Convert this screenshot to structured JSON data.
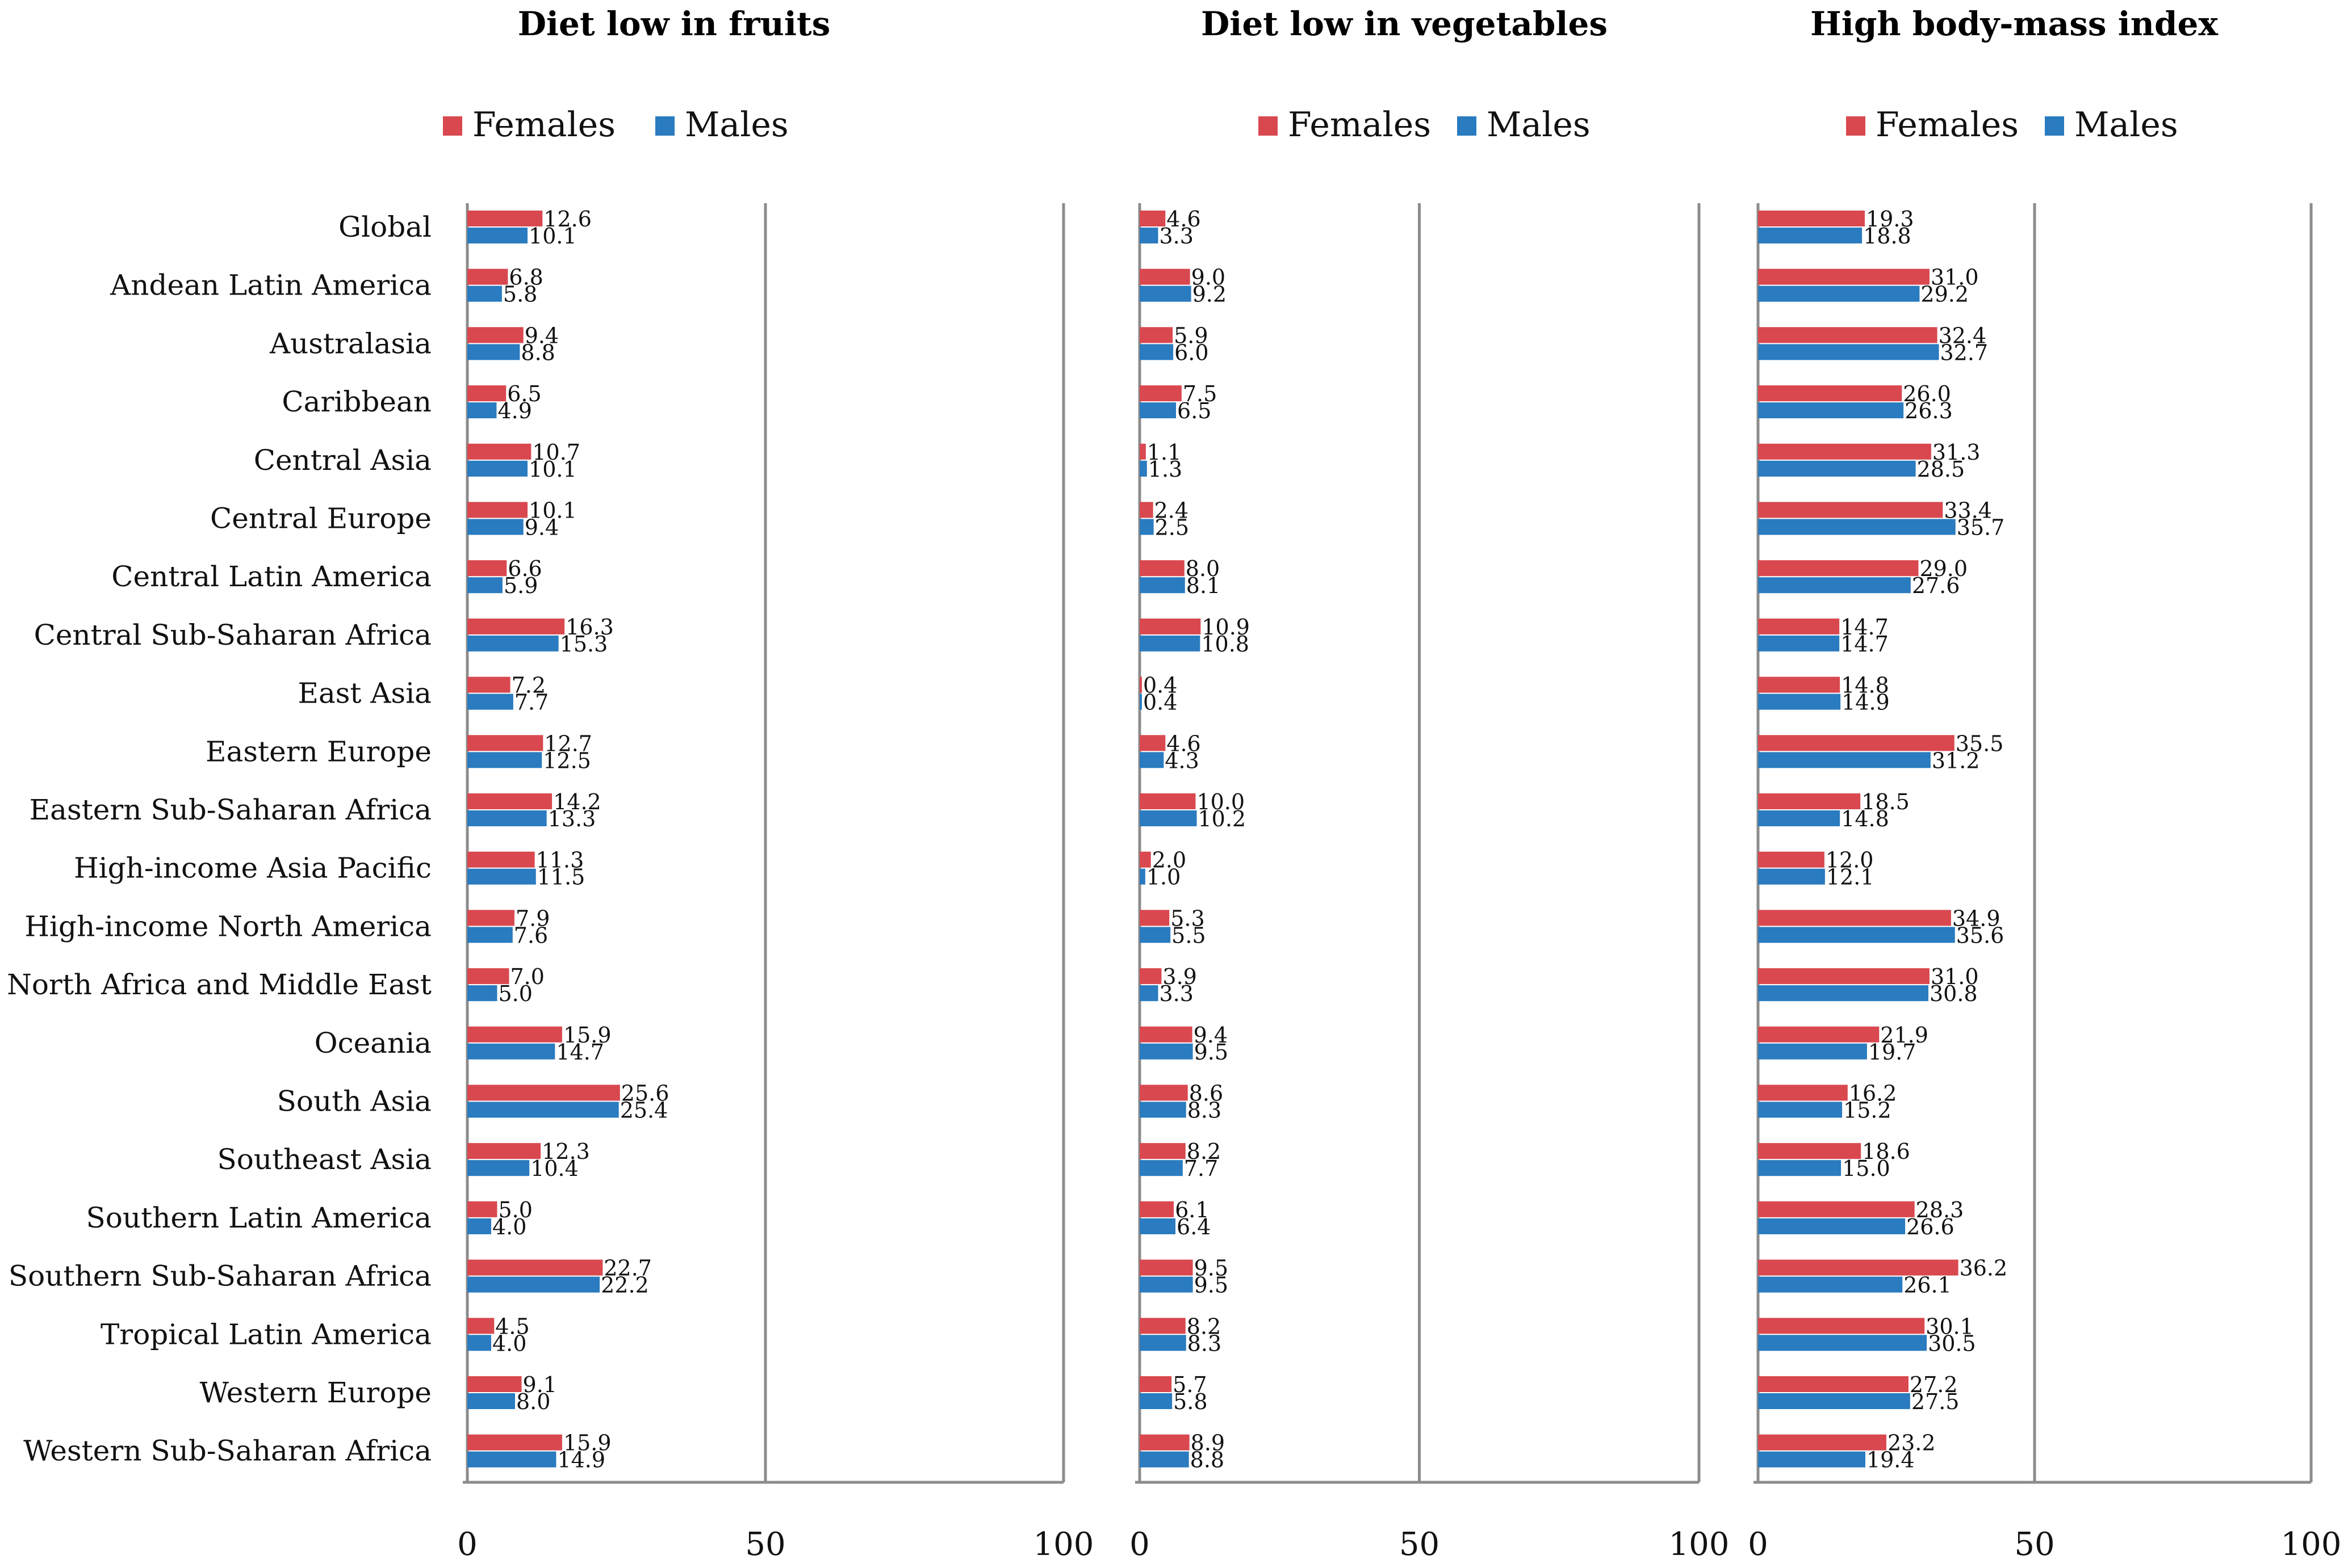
{
  "chart_data": [
    {
      "type": "bar",
      "orientation": "horizontal",
      "title": "Diet low in fruits",
      "xlim": [
        0,
        100
      ],
      "xticks": [
        "0",
        "50",
        "100"
      ],
      "legend": [
        "Females",
        "Males"
      ],
      "colors": {
        "Females": "#d9484f",
        "Males": "#2a7bbf"
      },
      "categories": [
        "Global",
        "Andean Latin America",
        "Australasia",
        "Caribbean",
        "Central Asia",
        "Central Europe",
        "Central Latin America",
        "Central Sub-Saharan Africa",
        "East Asia",
        "Eastern Europe",
        "Eastern Sub-Saharan Africa",
        "High-income Asia Pacific",
        "High-income North America",
        "North Africa and Middle East",
        "Oceania",
        "South Asia",
        "Southeast Asia",
        "Southern Latin America",
        "Southern Sub-Saharan Africa",
        "Tropical Latin America",
        "Western Europe",
        "Western Sub-Saharan Africa"
      ],
      "series": [
        {
          "name": "Females",
          "values": [
            12.6,
            6.8,
            9.4,
            6.5,
            10.7,
            10.1,
            6.6,
            16.3,
            7.2,
            12.7,
            14.2,
            11.3,
            7.9,
            7.0,
            15.9,
            25.6,
            12.3,
            5.0,
            22.7,
            4.5,
            9.1,
            15.9
          ],
          "labels": [
            "12.6",
            "6.8",
            "9.4",
            "6.5",
            "10.7",
            "10.1",
            "6.6",
            "16.3",
            "7.2",
            "12.7",
            "14.2",
            "11.3",
            "7.9",
            "7.0",
            "15.9",
            "25.6",
            "12.3",
            "5.0",
            "22.7",
            "4.5",
            "9.1",
            "15.9"
          ]
        },
        {
          "name": "Males",
          "values": [
            10.1,
            5.8,
            8.8,
            4.9,
            10.1,
            9.4,
            5.9,
            15.3,
            7.7,
            12.5,
            13.3,
            11.5,
            7.6,
            5.0,
            14.7,
            25.4,
            10.4,
            4.0,
            22.2,
            4.0,
            8.0,
            14.9
          ],
          "labels": [
            "10.1",
            "5.8",
            "8.8",
            "4.9",
            "10.1",
            "9.4",
            "5.9",
            "15.3",
            "7.7",
            "12.5",
            "13.3",
            "11.5",
            "7.6",
            "5.0",
            "14.7",
            "25.4",
            "10.4",
            "4.0",
            "22.2",
            "4.0",
            "8.0",
            "14.9"
          ]
        }
      ]
    },
    {
      "type": "bar",
      "orientation": "horizontal",
      "title": "Diet low in vegetables",
      "xlim": [
        0,
        100
      ],
      "xticks": [
        "0",
        "50",
        "100"
      ],
      "legend": [
        "Females",
        "Males"
      ],
      "colors": {
        "Females": "#d9484f",
        "Males": "#2a7bbf"
      },
      "series": [
        {
          "name": "Females",
          "values": [
            4.6,
            9.0,
            5.9,
            7.5,
            1.1,
            2.4,
            8.0,
            10.9,
            0.4,
            4.6,
            10.0,
            2.0,
            5.3,
            3.9,
            9.4,
            8.6,
            8.2,
            6.1,
            9.5,
            8.2,
            5.7,
            8.9
          ],
          "labels": [
            "4.6",
            "9.0",
            "5.9",
            "7.5",
            "1.1",
            "2.4",
            "8.0",
            "10.9",
            "0.4",
            "4.6",
            "10.0",
            "2.0",
            "5.3",
            "3.9",
            "9.4",
            "8.6",
            "8.2",
            "6.1",
            "9.5",
            "8.2",
            "5.7",
            "8.9"
          ]
        },
        {
          "name": "Males",
          "values": [
            3.3,
            9.2,
            6.0,
            6.5,
            1.3,
            2.5,
            8.1,
            10.8,
            0.4,
            4.3,
            10.2,
            1.0,
            5.5,
            3.3,
            9.5,
            8.3,
            7.7,
            6.4,
            9.5,
            8.3,
            5.8,
            8.8
          ],
          "labels": [
            "3.3",
            "9.2",
            "6.0",
            "6.5",
            "1.3",
            "2.5",
            "8.1",
            "10.8",
            "0.4",
            "4.3",
            "10.2",
            "1.0",
            "5.5",
            "3.3",
            "9.5",
            "8.3",
            "7.7",
            "6.4",
            "9.5",
            "8.3",
            "5.8",
            "8.8"
          ]
        }
      ]
    },
    {
      "type": "bar",
      "orientation": "horizontal",
      "title": "High body-mass index",
      "xlim": [
        0,
        100
      ],
      "xticks": [
        "0",
        "50",
        "100"
      ],
      "legend": [
        "Females",
        "Males"
      ],
      "colors": {
        "Females": "#d9484f",
        "Males": "#2a7bbf"
      },
      "series": [
        {
          "name": "Females",
          "values": [
            19.3,
            31.0,
            32.4,
            26.0,
            31.3,
            33.4,
            29.0,
            14.7,
            14.8,
            35.5,
            18.5,
            12.0,
            34.9,
            31.0,
            21.9,
            16.2,
            18.6,
            28.3,
            36.2,
            30.1,
            27.2,
            23.2
          ],
          "labels": [
            "19.3",
            "31.0",
            "32.4",
            "26.0",
            "31.3",
            "33.4",
            "29.0",
            "14.7",
            "14.8",
            "35.5",
            "18.5",
            "12.0",
            "34.9",
            "31.0",
            "21.9",
            "16.2",
            "18.6",
            "28.3",
            "36.2",
            "30.1",
            "27.2",
            "23.2"
          ]
        },
        {
          "name": "Males",
          "values": [
            18.8,
            29.2,
            32.7,
            26.3,
            28.5,
            35.7,
            27.6,
            14.7,
            14.9,
            31.2,
            14.8,
            12.1,
            35.6,
            30.8,
            19.7,
            15.2,
            15.0,
            26.6,
            26.1,
            30.5,
            27.5,
            19.4
          ],
          "labels": [
            "18.8",
            "29.2",
            "32.7",
            "26.3",
            "28.5",
            "35.7",
            "27.6",
            "14.7",
            "14.9",
            "31.2",
            "14.8",
            "12.1",
            "35.6",
            "30.8",
            "19.7",
            "15.2",
            "15.0",
            "26.6",
            "26.1",
            "30.5",
            "27.5",
            "19.4"
          ]
        }
      ]
    }
  ]
}
